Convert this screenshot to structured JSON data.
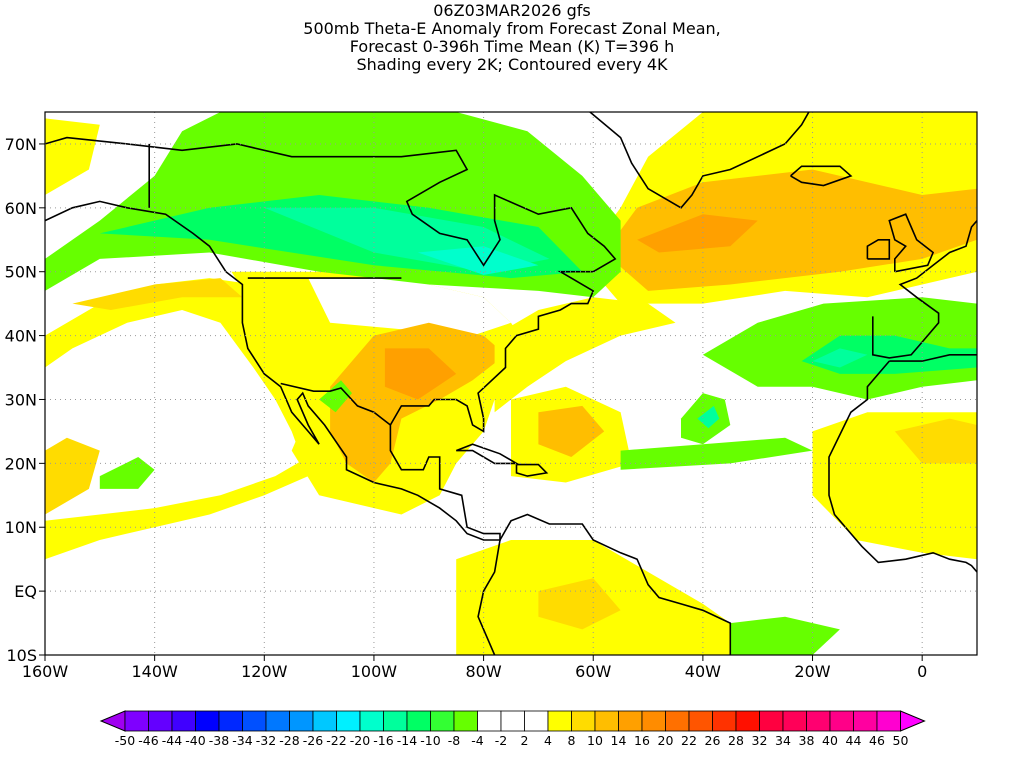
{
  "title": {
    "line1": "06Z03MAR2026 gfs",
    "line2": "500mb Theta-E Anomaly from Forecast Zonal Mean,",
    "line3": "Forecast 0-396h Time Mean (K) T=396 h",
    "line4": "Shading every 2K; Contoured every 4K"
  },
  "map": {
    "lon_range": [
      -160,
      10
    ],
    "lat_range": [
      -10,
      75
    ],
    "lon_ticks": [
      {
        "value": -160,
        "label": "160W"
      },
      {
        "value": -140,
        "label": "140W"
      },
      {
        "value": -120,
        "label": "120W"
      },
      {
        "value": -100,
        "label": "100W"
      },
      {
        "value": -80,
        "label": "80W"
      },
      {
        "value": -60,
        "label": "60W"
      },
      {
        "value": -40,
        "label": "40W"
      },
      {
        "value": -20,
        "label": "20W"
      },
      {
        "value": 0,
        "label": "0"
      }
    ],
    "lat_ticks": [
      {
        "value": -10,
        "label": "10S"
      },
      {
        "value": 0,
        "label": "EQ"
      },
      {
        "value": 10,
        "label": "10N"
      },
      {
        "value": 20,
        "label": "20N"
      },
      {
        "value": 30,
        "label": "30N"
      },
      {
        "value": 40,
        "label": "40N"
      },
      {
        "value": 50,
        "label": "50N"
      },
      {
        "value": 60,
        "label": "60N"
      },
      {
        "value": 70,
        "label": "70N"
      }
    ]
  },
  "colorbar": {
    "labels": [
      "-50",
      "-46",
      "-44",
      "-40",
      "-38",
      "-34",
      "-32",
      "-28",
      "-26",
      "-22",
      "-20",
      "-16",
      "-14",
      "-10",
      "-8",
      "-4",
      "-2",
      "2",
      "4",
      "8",
      "10",
      "14",
      "16",
      "20",
      "22",
      "26",
      "28",
      "32",
      "34",
      "38",
      "40",
      "44",
      "46",
      "50"
    ],
    "low_triangle_color": "#a000f0",
    "high_triangle_color": "#ff00ff",
    "colors": [
      "#7f00ff",
      "#6400ff",
      "#4000ff",
      "#0000ff",
      "#0028ff",
      "#0050ff",
      "#0078ff",
      "#0096ff",
      "#00c8ff",
      "#00f0ff",
      "#00ffcc",
      "#00ff9c",
      "#00ff64",
      "#33ff33",
      "#66ff00",
      "#ffffff",
      "#ffffff",
      "#ffffff",
      "#ffff00",
      "#ffdc00",
      "#ffbe00",
      "#ffa000",
      "#ff8c00",
      "#ff7000",
      "#ff5500",
      "#ff3200",
      "#ff1000",
      "#ff0040",
      "#ff0058",
      "#ff0070",
      "#ff0088",
      "#ff00a0",
      "#ff00d0"
    ]
  }
}
